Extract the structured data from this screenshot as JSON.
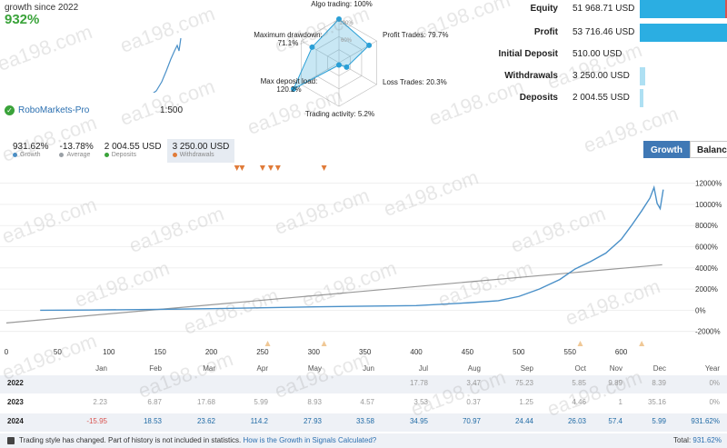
{
  "header": {
    "growth_since": "growth since 2022",
    "growth_pct": "932%"
  },
  "mini_chart": {
    "points": [
      [
        5,
        97
      ],
      [
        30,
        96
      ],
      [
        60,
        95
      ],
      [
        90,
        94
      ],
      [
        110,
        93
      ],
      [
        130,
        92
      ],
      [
        145,
        90
      ],
      [
        155,
        88
      ],
      [
        165,
        85
      ],
      [
        172,
        80
      ],
      [
        178,
        70
      ],
      [
        183,
        58
      ],
      [
        188,
        45
      ],
      [
        192,
        36
      ],
      [
        195,
        30
      ],
      [
        197,
        36
      ],
      [
        199,
        22
      ]
    ]
  },
  "broker": {
    "name": "RoboMarkets-Pro",
    "leverage": "1:500",
    "icon": "check-icon"
  },
  "radar": {
    "axes": [
      {
        "label": "Algo trading: 100%",
        "value": 100
      },
      {
        "label": "Profit Trades: 79.7%",
        "value": 79.7
      },
      {
        "label": "Loss Trades: 20.3%",
        "value": 20.3
      },
      {
        "label": "Trading activity: 5.2%",
        "value": 5.2
      },
      {
        "label": "Max deposit load:",
        "label2": "120.2%",
        "value": 120.2
      },
      {
        "label": "Maximum drawdown:",
        "label2": "71.1%",
        "value": 71.1
      }
    ],
    "ring_labels": [
      "100%",
      "60%"
    ]
  },
  "stats": [
    {
      "label": "Equity",
      "value": "51 968.71 USD",
      "bar": 1.0,
      "light": false,
      "marker": true
    },
    {
      "label": "Profit",
      "value": "53 716.46 USD",
      "bar": 1.0,
      "light": false,
      "marker": false
    },
    {
      "label": "Initial Deposit",
      "value": "510.00 USD",
      "bar": 0,
      "light": false,
      "marker": false
    },
    {
      "label": "Withdrawals",
      "value": "3 250.00 USD",
      "bar": 0.06,
      "light": true,
      "marker": false
    },
    {
      "label": "Deposits",
      "value": "2 004.55 USD",
      "bar": 0.04,
      "light": true,
      "marker": false
    }
  ],
  "summary": [
    {
      "value": "931.62%",
      "legend": "Growth",
      "color": "#4a90c8",
      "active": false
    },
    {
      "value": "-13.78%",
      "legend": "Average",
      "color": "#9aa0a6",
      "active": false
    },
    {
      "value": "2 004.55 USD",
      "legend": "Deposits",
      "color": "#3aa33a",
      "active": false
    },
    {
      "value": "3 250.00 USD",
      "legend": "Withdrawals",
      "color": "#e07b39",
      "active": true
    }
  ],
  "toggle": {
    "growth": "Growth",
    "balance": "Balance"
  },
  "chart_data": {
    "type": "line",
    "x_ticks": [
      0,
      50,
      100,
      150,
      200,
      250,
      300,
      350,
      400,
      450,
      500,
      550,
      600
    ],
    "y_ticks": [
      "12000%",
      "10000%",
      "8000%",
      "6000%",
      "4000%",
      "2000%",
      "0%",
      "-2000%"
    ],
    "y_values": [
      12000,
      10000,
      8000,
      6000,
      4000,
      2000,
      0,
      -2000
    ],
    "xlim": [
      0,
      650
    ],
    "ylim": [
      -2800,
      13000
    ],
    "series": [
      {
        "x": [
          33,
          80,
          150,
          200,
          250,
          300,
          350,
          400,
          450,
          480,
          500,
          520,
          540,
          555,
          570,
          585,
          600,
          610,
          620,
          628,
          632,
          635,
          638,
          641
        ],
        "y": [
          0,
          20,
          80,
          150,
          230,
          320,
          380,
          440,
          700,
          900,
          1300,
          2000,
          2900,
          3900,
          4600,
          5400,
          6700,
          8000,
          9400,
          10600,
          11600,
          10100,
          9600,
          11400
        ],
        "color": "#4a90c8"
      },
      {
        "x": [
          0,
          640
        ],
        "y": [
          -1200,
          4300
        ],
        "color": "#999999"
      }
    ],
    "withdrawal_markers_x": [
      225,
      230,
      250,
      258,
      265,
      310
    ],
    "deposit_markers_x": [
      255,
      310,
      560,
      620
    ]
  },
  "table": {
    "months": [
      "Jan",
      "Feb",
      "Mar",
      "Apr",
      "May",
      "Jun",
      "Jul",
      "Aug",
      "Sep",
      "Oct",
      "Nov",
      "Dec",
      "Year"
    ],
    "rows": [
      {
        "year": "2022",
        "values": [
          "",
          "",
          "",
          "",
          "",
          "",
          "17.78",
          "3.47",
          "75.23",
          "5.85",
          "9.89",
          "8.39",
          "0%"
        ],
        "dim": true
      },
      {
        "year": "2023",
        "values": [
          "2.23",
          "6.87",
          "17.68",
          "5.99",
          "8.93",
          "4.57",
          "3.53",
          "0.37",
          "1.25",
          "4.46",
          "1",
          "35.16",
          "0%"
        ],
        "dim": true
      },
      {
        "year": "2024",
        "values": [
          "-15.95",
          "18.53",
          "23.62",
          "114.2",
          "27.93",
          "33.58",
          "34.95",
          "70.97",
          "24.44",
          "26.03",
          "57.4",
          "5.99",
          "931.62%"
        ],
        "dim": false
      }
    ]
  },
  "footer": {
    "note": "Trading style has changed. Part of history is not included in statistics.",
    "link": "How is the Growth in Signals Calculated?",
    "total_label": "Total:",
    "total_value": "931.62%"
  },
  "watermark": "ea198.com"
}
